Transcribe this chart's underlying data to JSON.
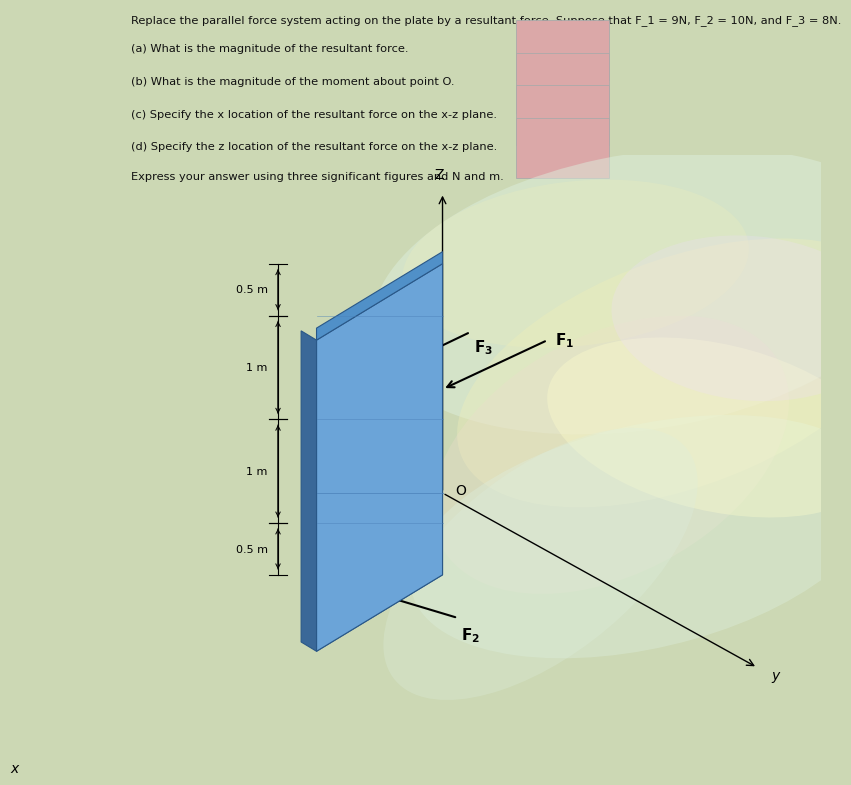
{
  "title_line1": "Replace the parallel force system acting on the plate by a resultant force. Suppose that F_1 = 9N, F_2 = 10N, and F_3 = 8N.",
  "q1": "(a) What is the magnitude of the resultant force.",
  "q2": "(b) What is the magnitude of the moment about point O.",
  "q3": "(c) Specify the x location of the resultant force on the x-z plane.",
  "q4": "(d) Specify the z location of the resultant force on the x-z plane.",
  "express": "Express your answer using three significant figures and N and m.",
  "bg_color_top": "#ccd8b4",
  "bg_color_diag": "#c4d0ac",
  "plate_front": "#6ba0d0",
  "plate_side": "#3a6898",
  "plate_top": "#5590c0",
  "plate_edge": "#2a5888",
  "text_color": "#111111",
  "box_color": "#dba8a8",
  "fig_width": 7.0,
  "fig_height": 6.91,
  "ox": 4.6,
  "oy": 3.8
}
